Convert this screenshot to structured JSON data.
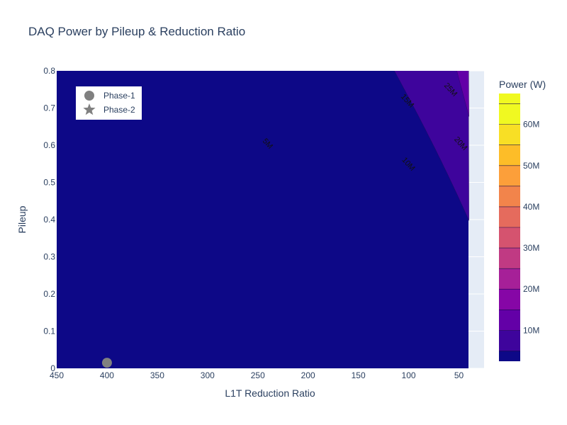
{
  "chart_data": {
    "type": "heatmap",
    "subtype": "contour",
    "title": "DAQ Power by Pileup & Reduction Ratio",
    "xlabel": "L1T Reduction Ratio",
    "ylabel": "Pileup",
    "xlim": [
      450,
      40
    ],
    "ylim": [
      0,
      0.8
    ],
    "x_reversed": true,
    "x_ticks": [
      450,
      400,
      350,
      300,
      250,
      200,
      150,
      100,
      50
    ],
    "y_ticks": [
      0,
      0.1,
      0.2,
      0.3,
      0.4,
      0.5,
      0.6,
      0.7,
      0.8
    ],
    "x_tick_labels": [
      "450",
      "400",
      "350",
      "300",
      "250",
      "200",
      "150",
      "100",
      "50"
    ],
    "y_tick_labels": [
      "0",
      "0.1",
      "0.2",
      "0.3",
      "0.4",
      "0.5",
      "0.6",
      "0.7",
      "0.8"
    ],
    "colorbar": {
      "title": "Power (W)",
      "range": [
        2500000,
        67500000
      ],
      "levels": [
        5000000,
        10000000,
        15000000,
        20000000,
        25000000,
        30000000,
        35000000,
        40000000,
        45000000,
        50000000,
        55000000,
        60000000,
        65000000
      ],
      "ticks": [
        10000000,
        20000000,
        30000000,
        40000000,
        50000000,
        60000000
      ],
      "tick_labels": [
        "10M",
        "20M",
        "30M",
        "40M",
        "50M",
        "60M"
      ],
      "colors": [
        "#0d0887",
        "#3e049c",
        "#6300a7",
        "#8606a6",
        "#a62098",
        "#c03a83",
        "#d5536f",
        "#e56b5d",
        "#f2844b",
        "#fc9f3a",
        "#fdbd28",
        "#f8df25",
        "#f0f921"
      ]
    },
    "contour_labels": [
      {
        "text": "5M",
        "x": 242,
        "y": 0.6
      },
      {
        "text": "10M",
        "x": 102,
        "y": 0.545
      },
      {
        "text": "15M",
        "x": 103,
        "y": 0.715
      },
      {
        "text": "20M",
        "x": 50,
        "y": 0.6
      },
      {
        "text": "25M",
        "x": 60,
        "y": 0.745
      }
    ],
    "series": [
      {
        "name": "Phase-1",
        "marker": "circle",
        "color": "#808080",
        "points": [
          {
            "x": 400,
            "y": 0.015
          }
        ]
      },
      {
        "name": "Phase-2",
        "marker": "star",
        "color": "#808080",
        "points": []
      }
    ],
    "legend_position": "top-left"
  }
}
